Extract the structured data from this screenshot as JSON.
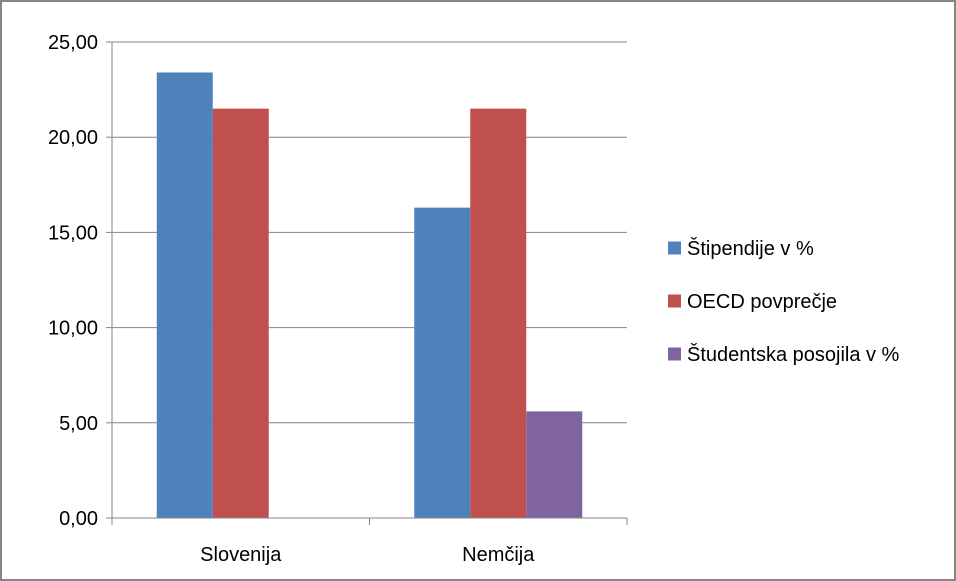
{
  "chart_data": {
    "type": "bar",
    "title": "",
    "xlabel": "",
    "ylabel": "",
    "categories": [
      "Slovenija",
      "Nemčija"
    ],
    "series": [
      {
        "name": "Štipendije v %",
        "values": [
          23.4,
          16.3
        ],
        "color": "#4F81BD"
      },
      {
        "name": "OECD povprečje",
        "values": [
          21.5,
          21.5
        ],
        "color": "#C0504D"
      },
      {
        "name": "Študentska posojila v %",
        "values": [
          null,
          5.6
        ],
        "color": "#8064A2"
      }
    ],
    "ylim": [
      0,
      25
    ],
    "yticks": [
      0,
      5,
      10,
      15,
      20,
      25
    ],
    "ytick_labels": [
      "0,00",
      "5,00",
      "10,00",
      "15,00",
      "20,00",
      "25,00"
    ],
    "grid": true,
    "legend_position": "right"
  }
}
